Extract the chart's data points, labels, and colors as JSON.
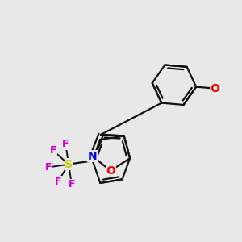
{
  "bg_color": "#e8e8e8",
  "bond_color": "#111111",
  "bond_width": 1.6,
  "S_color": "#cccc00",
  "F_color": "#cc00cc",
  "O_color": "#ee0000",
  "N_color": "#0000ee",
  "figsize": [
    3.0,
    3.0
  ],
  "dpi": 100,
  "xlim": [
    -1.8,
    2.4
  ],
  "ylim": [
    -2.2,
    2.2
  ]
}
